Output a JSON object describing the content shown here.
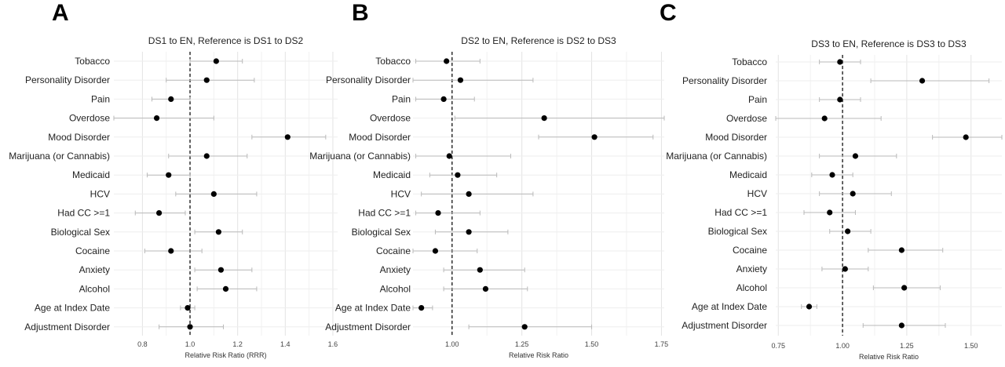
{
  "chart_data": [
    {
      "type": "forest",
      "panel_label": "A",
      "title": "DS1 to EN, Reference is DS1 to DS2",
      "xlabel": "Relative Risk Ratio (RRR)",
      "ylabel": "",
      "xlim": [
        0.68,
        1.62
      ],
      "xticks": [
        0.8,
        1.0,
        1.2,
        1.4,
        1.6
      ],
      "xtick_labels": [
        "0.8",
        "1.0",
        "1.2",
        "1.4",
        "1.6"
      ],
      "reference_line": 1.0,
      "grid": true,
      "categories": [
        "Tobacco",
        "Personality Disorder",
        "Pain",
        "Overdose",
        "Mood Disorder",
        "Marijuana (or Cannabis)",
        "Medicaid",
        "HCV",
        "Had CC >=1",
        "Biological Sex",
        "Cocaine",
        "Anxiety",
        "Alcohol",
        "Age at Index Date",
        "Adjustment Disorder"
      ],
      "estimates": [
        1.11,
        1.07,
        0.92,
        0.86,
        1.41,
        1.07,
        0.91,
        1.1,
        0.87,
        1.12,
        0.92,
        1.13,
        1.15,
        0.99,
        1.0
      ],
      "lower": [
        1.0,
        0.9,
        0.84,
        0.67,
        1.26,
        0.91,
        0.82,
        0.94,
        0.77,
        1.02,
        0.81,
        1.02,
        1.03,
        0.96,
        0.87
      ],
      "upper": [
        1.22,
        1.27,
        1.0,
        1.1,
        1.57,
        1.24,
        1.0,
        1.28,
        0.98,
        1.22,
        1.05,
        1.26,
        1.28,
        1.02,
        1.14
      ]
    },
    {
      "type": "forest",
      "panel_label": "B",
      "title": "DS2 to EN, Reference is DS2 to DS3",
      "xlabel": "Relative Risk Ratio",
      "ylabel": "",
      "xlim": [
        0.86,
        1.76
      ],
      "xticks": [
        1.0,
        1.25,
        1.5,
        1.75
      ],
      "xtick_labels": [
        "1.00",
        "1.25",
        "1.50",
        "1.75"
      ],
      "reference_line": 1.0,
      "grid": true,
      "categories": [
        "Tobacco",
        "Personality Disorder",
        "Pain",
        "Overdose",
        "Mood Disorder",
        "Marijuana (or Cannabis)",
        "Medicaid",
        "HCV",
        "Had CC >=1",
        "Biological Sex",
        "Cocaine",
        "Anxiety",
        "Alcohol",
        "Age at Index Date",
        "Adjustment Disorder"
      ],
      "estimates": [
        0.98,
        1.03,
        0.97,
        1.33,
        1.51,
        0.99,
        1.02,
        1.06,
        0.95,
        1.06,
        0.94,
        1.1,
        1.12,
        0.89,
        1.26
      ],
      "lower": [
        0.87,
        0.86,
        0.87,
        1.01,
        1.31,
        0.87,
        0.92,
        0.89,
        0.87,
        0.94,
        0.85,
        0.97,
        0.97,
        0.85,
        1.06
      ],
      "upper": [
        1.1,
        1.29,
        1.08,
        1.76,
        1.72,
        1.21,
        1.16,
        1.29,
        1.1,
        1.2,
        1.09,
        1.26,
        1.27,
        0.93,
        1.5
      ]
    },
    {
      "type": "forest",
      "panel_label": "C",
      "title": "DS3 to EN, Reference is DS3 to DS3",
      "xlabel": "Relative Risk Ratio",
      "ylabel": "",
      "xlim": [
        0.74,
        1.62
      ],
      "xticks": [
        0.75,
        1.0,
        1.25,
        1.5
      ],
      "xtick_labels": [
        "0.75",
        "1.00",
        "1.25",
        "1.50"
      ],
      "reference_line": 1.0,
      "grid": true,
      "categories": [
        "Tobacco",
        "Personality Disorder",
        "Pain",
        "Overdose",
        "Mood Disorder",
        "Marijuana (or Cannabis)",
        "Medicaid",
        "HCV",
        "Had CC >=1",
        "Biological Sex",
        "Cocaine",
        "Anxiety",
        "Alcohol",
        "Age at Index Date",
        "Adjustment Disorder"
      ],
      "estimates": [
        0.99,
        1.31,
        0.99,
        0.93,
        1.48,
        1.05,
        0.96,
        1.04,
        0.95,
        1.02,
        1.23,
        1.01,
        1.24,
        0.87,
        1.23
      ],
      "lower": [
        0.91,
        1.11,
        0.91,
        0.74,
        1.35,
        0.91,
        0.88,
        0.91,
        0.85,
        0.95,
        1.1,
        0.92,
        1.12,
        0.84,
        1.08
      ],
      "upper": [
        1.07,
        1.57,
        1.07,
        1.15,
        1.62,
        1.21,
        1.04,
        1.19,
        1.05,
        1.11,
        1.39,
        1.1,
        1.38,
        0.9,
        1.4
      ]
    }
  ]
}
